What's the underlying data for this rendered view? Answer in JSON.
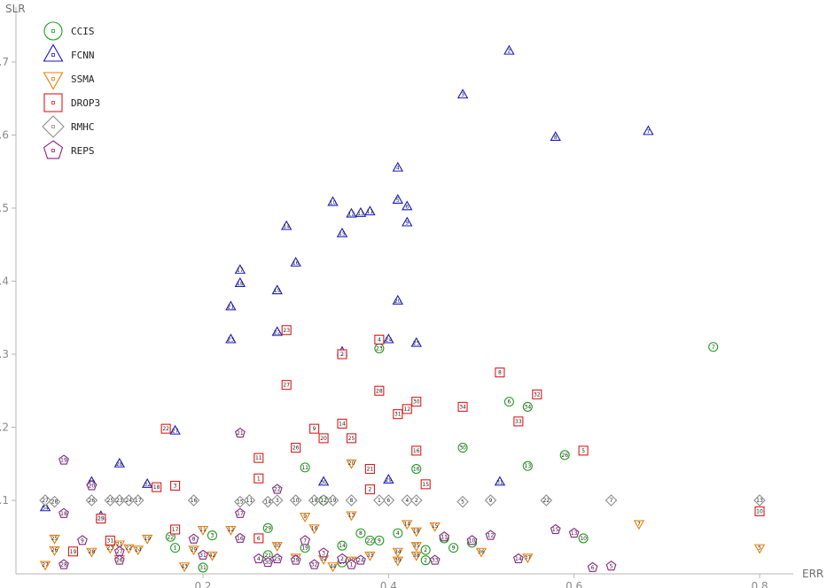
{
  "chart_data": {
    "type": "scatter",
    "title": "",
    "xlabel": "ERR",
    "ylabel": "SLR",
    "xlim": [
      0.0,
      0.86
    ],
    "ylim": [
      0.0,
      0.76
    ],
    "xticks": [
      0.2,
      0.4,
      0.6,
      0.8
    ],
    "yticks": [
      0.1,
      0.2,
      0.3,
      0.4,
      0.5,
      0.6,
      0.7
    ],
    "xtick_labels": [
      "0.2",
      "0.4",
      "0.6",
      "0.8"
    ],
    "ytick_labels": [
      "0.1",
      "0.2",
      "0.3",
      "0.4",
      "0.5",
      "0.6",
      "0.7"
    ],
    "grid": false,
    "legend_position": "top-left",
    "series": [
      {
        "name": "CCIS",
        "marker": "circle",
        "color": "#1aa11a",
        "points": [
          [
            0.75,
            0.31,
            "7"
          ],
          [
            0.39,
            0.308,
            "23"
          ],
          [
            0.53,
            0.235,
            "6"
          ],
          [
            0.55,
            0.228,
            "34"
          ],
          [
            0.48,
            0.172,
            "30"
          ],
          [
            0.59,
            0.162,
            "26"
          ],
          [
            0.55,
            0.147,
            "13"
          ],
          [
            0.43,
            0.143,
            "16"
          ],
          [
            0.31,
            0.145,
            "11"
          ],
          [
            0.33,
            0.1,
            "20"
          ],
          [
            0.27,
            0.062,
            "29"
          ],
          [
            0.37,
            0.055,
            "8"
          ],
          [
            0.41,
            0.055,
            "4"
          ],
          [
            0.38,
            0.045,
            "22"
          ],
          [
            0.39,
            0.045,
            "9"
          ],
          [
            0.165,
            0.05,
            "22"
          ],
          [
            0.21,
            0.052,
            "3"
          ],
          [
            0.17,
            0.035,
            "1"
          ],
          [
            0.35,
            0.038,
            "14"
          ],
          [
            0.31,
            0.035,
            "19"
          ],
          [
            0.44,
            0.032,
            "2"
          ],
          [
            0.46,
            0.048,
            "27"
          ],
          [
            0.47,
            0.035,
            "9"
          ],
          [
            0.49,
            0.042,
            "5"
          ],
          [
            0.61,
            0.048,
            "10"
          ],
          [
            0.2,
            0.008,
            "31"
          ],
          [
            0.27,
            0.025,
            "21"
          ],
          [
            0.35,
            0.015,
            "17"
          ],
          [
            0.44,
            0.018,
            "2"
          ]
        ]
      },
      {
        "name": "FCNN",
        "marker": "triangle-up",
        "color": "#1616c8",
        "points": [
          [
            0.53,
            0.715,
            "2"
          ],
          [
            0.48,
            0.655,
            "3"
          ],
          [
            0.68,
            0.605,
            "7"
          ],
          [
            0.58,
            0.597,
            "8"
          ],
          [
            0.41,
            0.555,
            "4"
          ],
          [
            0.41,
            0.511,
            "5"
          ],
          [
            0.42,
            0.502,
            "6"
          ],
          [
            0.42,
            0.48,
            "9"
          ],
          [
            0.34,
            0.508,
            "10"
          ],
          [
            0.38,
            0.495,
            "11"
          ],
          [
            0.36,
            0.492,
            "12"
          ],
          [
            0.37,
            0.493,
            "13"
          ],
          [
            0.29,
            0.475,
            "14"
          ],
          [
            0.35,
            0.465,
            "15"
          ],
          [
            0.3,
            0.425,
            "16"
          ],
          [
            0.24,
            0.415,
            "17"
          ],
          [
            0.24,
            0.397,
            "18"
          ],
          [
            0.28,
            0.387,
            "19"
          ],
          [
            0.41,
            0.373,
            "20"
          ],
          [
            0.23,
            0.365,
            "21"
          ],
          [
            0.28,
            0.33,
            "22"
          ],
          [
            0.23,
            0.32,
            "23"
          ],
          [
            0.4,
            0.32,
            "24"
          ],
          [
            0.43,
            0.315,
            "25"
          ],
          [
            0.35,
            0.303,
            "26"
          ],
          [
            0.17,
            0.195,
            "27"
          ],
          [
            0.11,
            0.15,
            "28"
          ],
          [
            0.4,
            0.128,
            "29"
          ],
          [
            0.33,
            0.125,
            "30"
          ],
          [
            0.52,
            0.125,
            "31"
          ],
          [
            0.14,
            0.122,
            "32"
          ],
          [
            0.08,
            0.125,
            "33"
          ],
          [
            0.03,
            0.09,
            "34"
          ],
          [
            0.09,
            0.078,
            "35"
          ]
        ]
      },
      {
        "name": "SSMA",
        "marker": "triangle-down",
        "color": "#ee7d00",
        "points": [
          [
            0.67,
            0.068,
            "7"
          ],
          [
            0.8,
            0.035,
            "5"
          ],
          [
            0.36,
            0.151,
            "20"
          ],
          [
            0.31,
            0.078,
            "9"
          ],
          [
            0.36,
            0.08,
            "13"
          ],
          [
            0.32,
            0.062,
            "16"
          ],
          [
            0.2,
            0.06,
            "11"
          ],
          [
            0.23,
            0.06,
            "12"
          ],
          [
            0.42,
            0.068,
            "14"
          ],
          [
            0.45,
            0.065,
            "15"
          ],
          [
            0.43,
            0.058,
            "18"
          ],
          [
            0.14,
            0.048,
            "19"
          ],
          [
            0.11,
            0.04,
            "21"
          ],
          [
            0.12,
            0.035,
            "22"
          ],
          [
            0.1,
            0.035,
            "23"
          ],
          [
            0.13,
            0.033,
            "24"
          ],
          [
            0.04,
            0.048,
            "25"
          ],
          [
            0.04,
            0.032,
            "26"
          ],
          [
            0.03,
            0.012,
            "27"
          ],
          [
            0.08,
            0.03,
            "28"
          ],
          [
            0.19,
            0.033,
            "29"
          ],
          [
            0.28,
            0.038,
            "30"
          ],
          [
            0.3,
            0.022,
            "31"
          ],
          [
            0.33,
            0.02,
            "32"
          ],
          [
            0.38,
            0.025,
            "33"
          ],
          [
            0.41,
            0.03,
            "34"
          ],
          [
            0.43,
            0.038,
            "35"
          ],
          [
            0.5,
            0.03,
            "36"
          ],
          [
            0.55,
            0.022,
            "37"
          ],
          [
            0.43,
            0.025,
            "38"
          ],
          [
            0.41,
            0.018,
            "39"
          ],
          [
            0.36,
            0.018,
            "40"
          ],
          [
            0.11,
            0.02,
            "41"
          ],
          [
            0.21,
            0.025,
            "42"
          ],
          [
            0.18,
            0.01,
            "43"
          ],
          [
            0.34,
            0.01,
            "44"
          ]
        ]
      },
      {
        "name": "DROP3",
        "marker": "square",
        "color": "#e01a1a",
        "points": [
          [
            0.8,
            0.085,
            "10"
          ],
          [
            0.52,
            0.275,
            "8"
          ],
          [
            0.56,
            0.245,
            "32"
          ],
          [
            0.48,
            0.228,
            "34"
          ],
          [
            0.54,
            0.208,
            "33"
          ],
          [
            0.61,
            0.168,
            "5"
          ],
          [
            0.29,
            0.333,
            "23"
          ],
          [
            0.39,
            0.32,
            "4"
          ],
          [
            0.35,
            0.3,
            "2"
          ],
          [
            0.29,
            0.258,
            "27"
          ],
          [
            0.39,
            0.25,
            "28"
          ],
          [
            0.42,
            0.225,
            "12"
          ],
          [
            0.43,
            0.235,
            "30"
          ],
          [
            0.41,
            0.218,
            "31"
          ],
          [
            0.35,
            0.205,
            "14"
          ],
          [
            0.32,
            0.198,
            "9"
          ],
          [
            0.33,
            0.185,
            "20"
          ],
          [
            0.36,
            0.185,
            "25"
          ],
          [
            0.16,
            0.198,
            "22"
          ],
          [
            0.3,
            0.172,
            "26"
          ],
          [
            0.43,
            0.168,
            "16"
          ],
          [
            0.26,
            0.158,
            "11"
          ],
          [
            0.38,
            0.143,
            "21"
          ],
          [
            0.26,
            0.13,
            "1"
          ],
          [
            0.44,
            0.122,
            "15"
          ],
          [
            0.38,
            0.115,
            "2"
          ],
          [
            0.17,
            0.12,
            "3"
          ],
          [
            0.15,
            0.118,
            "18"
          ],
          [
            0.17,
            0.06,
            "17"
          ],
          [
            0.1,
            0.045,
            "31"
          ],
          [
            0.06,
            0.03,
            "19"
          ],
          [
            0.26,
            0.048,
            "6"
          ],
          [
            0.09,
            0.075,
            "29"
          ]
        ]
      },
      {
        "name": "RMHC",
        "marker": "diamond",
        "color": "#8c8c8c",
        "points": [
          [
            0.8,
            0.1,
            "13"
          ],
          [
            0.64,
            0.1,
            "7"
          ],
          [
            0.57,
            0.1,
            "22"
          ],
          [
            0.51,
            0.1,
            "9"
          ],
          [
            0.48,
            0.098,
            "5"
          ],
          [
            0.42,
            0.1,
            "4"
          ],
          [
            0.43,
            0.1,
            "2"
          ],
          [
            0.4,
            0.1,
            "6"
          ],
          [
            0.39,
            0.1,
            "1"
          ],
          [
            0.36,
            0.1,
            "8"
          ],
          [
            0.34,
            0.1,
            "19"
          ],
          [
            0.33,
            0.1,
            "12"
          ],
          [
            0.32,
            0.1,
            "18"
          ],
          [
            0.3,
            0.1,
            "10"
          ],
          [
            0.28,
            0.1,
            "3"
          ],
          [
            0.27,
            0.098,
            "14"
          ],
          [
            0.25,
            0.1,
            "11"
          ],
          [
            0.24,
            0.098,
            "15"
          ],
          [
            0.19,
            0.1,
            "16"
          ],
          [
            0.13,
            0.1,
            "17"
          ],
          [
            0.11,
            0.1,
            "23"
          ],
          [
            0.12,
            0.1,
            "24"
          ],
          [
            0.1,
            0.1,
            "25"
          ],
          [
            0.08,
            0.1,
            "26"
          ],
          [
            0.03,
            0.1,
            "27"
          ],
          [
            0.04,
            0.098,
            "28"
          ]
        ]
      },
      {
        "name": "REPS",
        "marker": "pentagon",
        "color": "#8b1f8b",
        "points": [
          [
            0.05,
            0.155,
            "19"
          ],
          [
            0.08,
            0.12,
            "20"
          ],
          [
            0.24,
            0.192,
            "21"
          ],
          [
            0.28,
            0.115,
            "22"
          ],
          [
            0.05,
            0.082,
            "18"
          ],
          [
            0.24,
            0.082,
            "17"
          ],
          [
            0.24,
            0.048,
            "16"
          ],
          [
            0.58,
            0.06,
            "15"
          ],
          [
            0.6,
            0.055,
            "13"
          ],
          [
            0.51,
            0.052,
            "12"
          ],
          [
            0.46,
            0.05,
            "11"
          ],
          [
            0.49,
            0.045,
            "10"
          ],
          [
            0.07,
            0.045,
            "9"
          ],
          [
            0.19,
            0.047,
            "8"
          ],
          [
            0.31,
            0.045,
            "7"
          ],
          [
            0.54,
            0.02,
            "14"
          ],
          [
            0.62,
            0.008,
            "6"
          ],
          [
            0.64,
            0.01,
            "5"
          ],
          [
            0.26,
            0.02,
            "4"
          ],
          [
            0.33,
            0.028,
            "3"
          ],
          [
            0.35,
            0.02,
            "2"
          ],
          [
            0.36,
            0.012,
            "1"
          ],
          [
            0.37,
            0.018,
            "24"
          ],
          [
            0.28,
            0.02,
            "25"
          ],
          [
            0.11,
            0.018,
            "26"
          ],
          [
            0.11,
            0.03,
            "27"
          ],
          [
            0.05,
            0.012,
            "28"
          ],
          [
            0.3,
            0.018,
            "29"
          ],
          [
            0.27,
            0.015,
            "30"
          ],
          [
            0.2,
            0.025,
            "31"
          ],
          [
            0.32,
            0.012,
            "32"
          ],
          [
            0.45,
            0.018,
            "33"
          ]
        ]
      }
    ]
  }
}
